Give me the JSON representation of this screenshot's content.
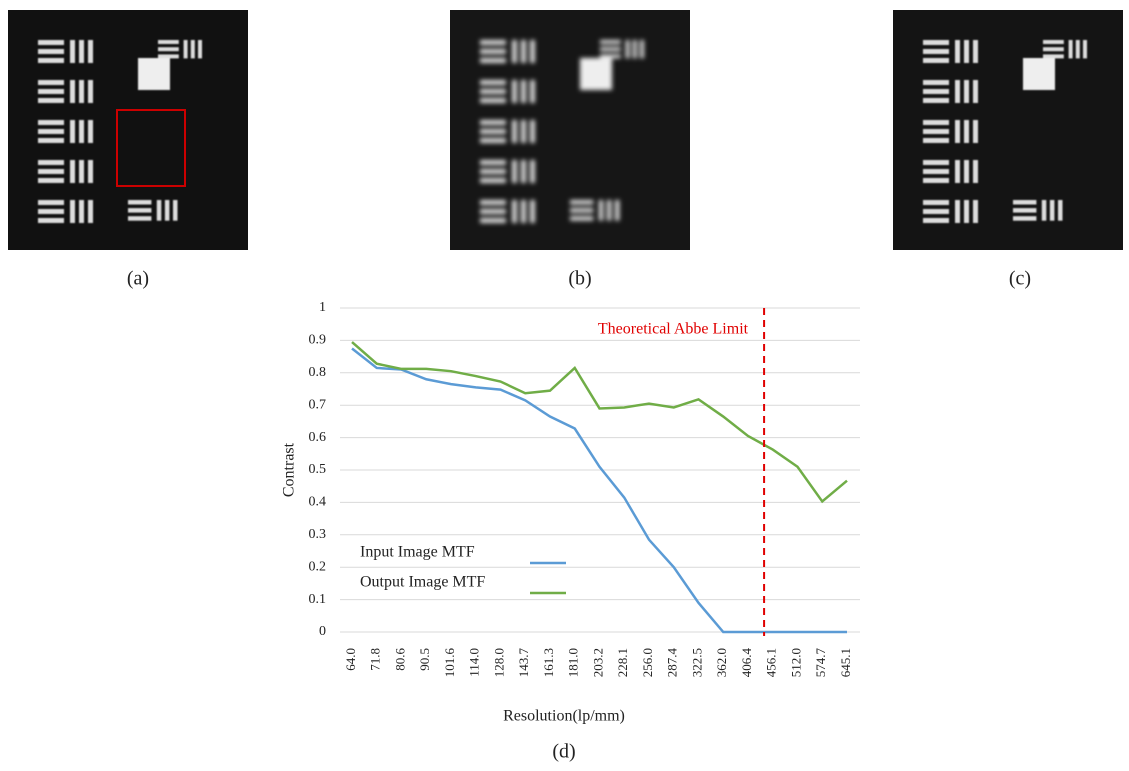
{
  "captions": [
    "(a)",
    "(b)",
    "(c)"
  ],
  "chart_data": {
    "type": "line",
    "caption": "(d)",
    "x_label": "Resolution(lp/mm)",
    "y_label": "Contrast",
    "categories": [
      "64.0",
      "71.8",
      "80.6",
      "90.5",
      "101.6",
      "114.0",
      "128.0",
      "143.7",
      "161.3",
      "181.0",
      "203.2",
      "228.1",
      "256.0",
      "287.4",
      "322.5",
      "362.0",
      "406.4",
      "456.1",
      "512.0",
      "574.7",
      "645.1"
    ],
    "series": [
      {
        "name": "Input Image MTF",
        "color": "#5b9bd5",
        "values": [
          0.875,
          0.815,
          0.81,
          0.78,
          0.765,
          0.755,
          0.748,
          0.715,
          0.665,
          0.628,
          0.51,
          0.415,
          0.285,
          0.2,
          0.09,
          0,
          0,
          0,
          0,
          0,
          0
        ]
      },
      {
        "name": "Output Image MTF",
        "color": "#70ad47",
        "values": [
          0.895,
          0.828,
          0.812,
          0.812,
          0.805,
          0.79,
          0.773,
          0.737,
          0.745,
          0.815,
          0.69,
          0.693,
          0.705,
          0.693,
          0.718,
          0.665,
          0.605,
          0.563,
          0.51,
          0.403,
          0.467
        ]
      }
    ],
    "ylim": [
      0,
      1
    ],
    "yticks": [
      0,
      0.1,
      0.2,
      0.3,
      0.4,
      0.5,
      0.6,
      0.7,
      0.8,
      0.9,
      1
    ],
    "grid": true,
    "annotation": {
      "text": "Theoretical Abbe Limit",
      "x": 16.65,
      "color": "#e00000"
    }
  }
}
